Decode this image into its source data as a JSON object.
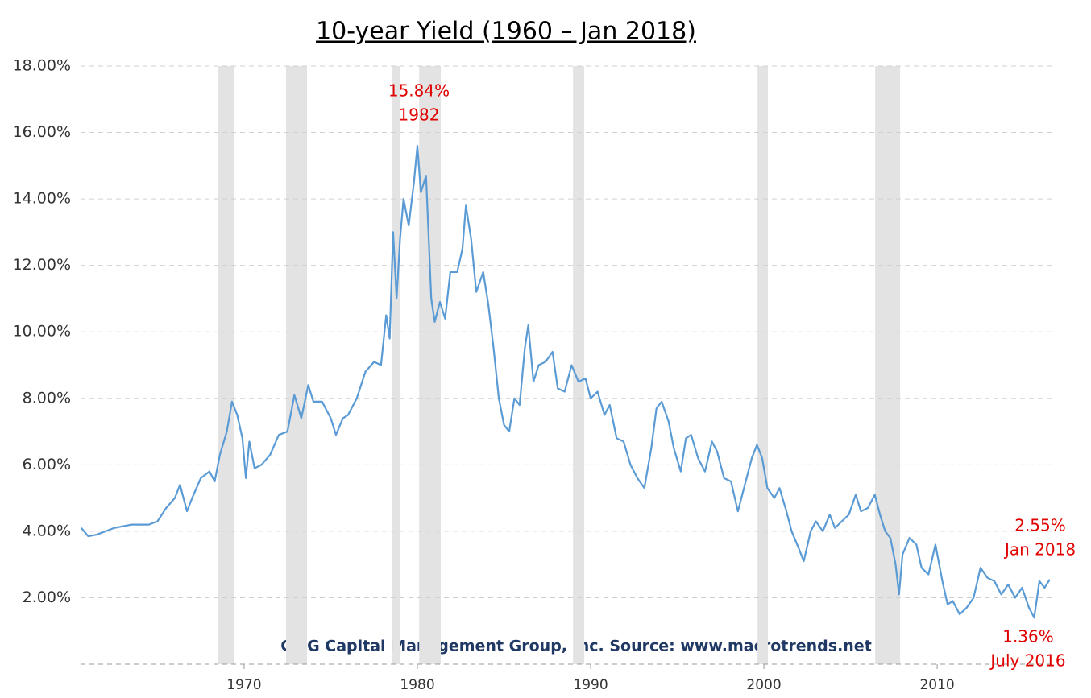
{
  "chart_data": {
    "type": "line",
    "title": "10-year Yield  (1960 – Jan 2018)",
    "footer": "CMG Capital Management Group, Inc.  Source: www.macrotrends.net",
    "annotations": [
      {
        "lines": [
          "15.84%",
          "1982"
        ]
      },
      {
        "lines": [
          "2.55%",
          "Jan 2018"
        ]
      },
      {
        "lines": [
          "1.36%",
          "July 2016"
        ]
      }
    ],
    "xlim": [
      1960.56,
      2016.6
    ],
    "xticks": [
      1970,
      1980,
      1990,
      2000,
      2010
    ],
    "ylim": [
      0,
      18
    ],
    "yticks": [
      {
        "value": 2,
        "label": "2.00%"
      },
      {
        "value": 4,
        "label": "4.00%"
      },
      {
        "value": 6,
        "label": "6.00%"
      },
      {
        "value": 8,
        "label": "8.00%"
      },
      {
        "value": 10,
        "label": "10.00%"
      },
      {
        "value": 12,
        "label": "12.00%"
      },
      {
        "value": 14,
        "label": "14.00%"
      },
      {
        "value": 16,
        "label": "16.00%"
      },
      {
        "value": 18,
        "label": "18.00%"
      }
    ],
    "grid": true,
    "recessions": [
      [
        1968.47,
        1969.44
      ],
      [
        1972.42,
        1973.63
      ],
      [
        1978.56,
        1979.02
      ],
      [
        1980.1,
        1981.35
      ],
      [
        1988.98,
        1989.63
      ],
      [
        1999.63,
        2000.23
      ],
      [
        2006.42,
        2007.86
      ]
    ],
    "recession_color": "#e3e3e3",
    "series": [
      {
        "color": "#5b9bd5",
        "x": [
          1960.6,
          1961,
          1961.5,
          1962,
          1962.5,
          1963,
          1963.5,
          1964,
          1964.5,
          1965,
          1965.5,
          1966,
          1966.3,
          1966.7,
          1967,
          1967.5,
          1968,
          1968.3,
          1968.6,
          1969,
          1969.3,
          1969.6,
          1969.9,
          1970.1,
          1970.3,
          1970.6,
          1971,
          1971.5,
          1972,
          1972.5,
          1972.9,
          1973.3,
          1973.7,
          1974,
          1974.5,
          1975,
          1975.3,
          1975.7,
          1976,
          1976.5,
          1977,
          1977.5,
          1977.9,
          1978.2,
          1978.4,
          1978.6,
          1978.8,
          1979,
          1979.2,
          1979.5,
          1979.8,
          1980,
          1980.2,
          1980.5,
          1980.8,
          1981,
          1981.3,
          1981.6,
          1981.9,
          1982.3,
          1982.6,
          1982.8,
          1983.1,
          1983.4,
          1983.8,
          1984.1,
          1984.4,
          1984.7,
          1985,
          1985.3,
          1985.6,
          1985.9,
          1986.2,
          1986.4,
          1986.7,
          1987,
          1987.4,
          1987.8,
          1988.1,
          1988.5,
          1988.9,
          1989.3,
          1989.7,
          1990,
          1990.4,
          1990.8,
          1991.1,
          1991.5,
          1991.9,
          1992.3,
          1992.7,
          1993.1,
          1993.5,
          1993.8,
          1994.1,
          1994.5,
          1994.8,
          1995.2,
          1995.5,
          1995.8,
          1996.2,
          1996.6,
          1997,
          1997.3,
          1997.7,
          1998.1,
          1998.5,
          1998.9,
          1999.3,
          1999.6,
          1999.9,
          2000.2,
          2000.6,
          2000.9,
          2001.3,
          2001.6,
          2002,
          2002.3,
          2002.7,
          2003,
          2003.4,
          2003.8,
          2004.1,
          2004.5,
          2004.9,
          2005.3,
          2005.6,
          2006,
          2006.4,
          2006.7,
          2007,
          2007.3,
          2007.6,
          2007.8,
          2008,
          2008.4,
          2008.8,
          2009.1,
          2009.5,
          2009.9,
          2010.3,
          2010.6,
          2010.9,
          2011.3,
          2011.7,
          2012.1,
          2012.5,
          2012.9,
          2013.3,
          2013.7,
          2014.1,
          2014.5,
          2014.9,
          2015.3,
          2015.6,
          2015.9,
          2016.2,
          2016.5
        ],
        "values": [
          4.1,
          3.85,
          3.9,
          4.0,
          4.1,
          4.15,
          4.2,
          4.2,
          4.2,
          4.3,
          4.7,
          5.0,
          5.4,
          4.6,
          5.0,
          5.6,
          5.8,
          5.5,
          6.3,
          7.0,
          7.9,
          7.5,
          6.8,
          5.6,
          6.7,
          5.9,
          6.0,
          6.3,
          6.9,
          7.0,
          8.1,
          7.4,
          8.4,
          7.9,
          7.9,
          7.4,
          6.9,
          7.4,
          7.5,
          8.0,
          8.8,
          9.1,
          9.0,
          10.5,
          9.8,
          13.0,
          11.0,
          12.8,
          14.0,
          13.2,
          14.5,
          15.6,
          14.2,
          14.7,
          11.0,
          10.3,
          10.9,
          10.4,
          11.8,
          11.8,
          12.5,
          13.8,
          12.8,
          11.2,
          11.8,
          10.8,
          9.5,
          8.0,
          7.2,
          7.0,
          8.0,
          7.8,
          9.5,
          10.2,
          8.5,
          9.0,
          9.1,
          9.4,
          8.3,
          8.2,
          9.0,
          8.5,
          8.6,
          8.0,
          8.2,
          7.5,
          7.8,
          6.8,
          6.7,
          6.0,
          5.6,
          5.3,
          6.5,
          7.7,
          7.9,
          7.3,
          6.5,
          5.8,
          6.8,
          6.9,
          6.2,
          5.8,
          6.7,
          6.4,
          5.6,
          5.5,
          4.6,
          5.4,
          6.2,
          6.6,
          6.2,
          5.3,
          5.0,
          5.3,
          4.6,
          4.0,
          3.5,
          3.1,
          4.0,
          4.3,
          4.0,
          4.5,
          4.1,
          4.3,
          4.5,
          5.1,
          4.6,
          4.7,
          5.1,
          4.5,
          4.0,
          3.8,
          3.0,
          2.1,
          3.3,
          3.8,
          3.6,
          2.9,
          2.7,
          3.6,
          2.5,
          1.8,
          1.9,
          1.5,
          1.7,
          2.0,
          2.9,
          2.6,
          2.5,
          2.1,
          2.4,
          2.0,
          2.3,
          1.7,
          1.4,
          2.5,
          2.3,
          2.55
        ]
      }
    ]
  }
}
